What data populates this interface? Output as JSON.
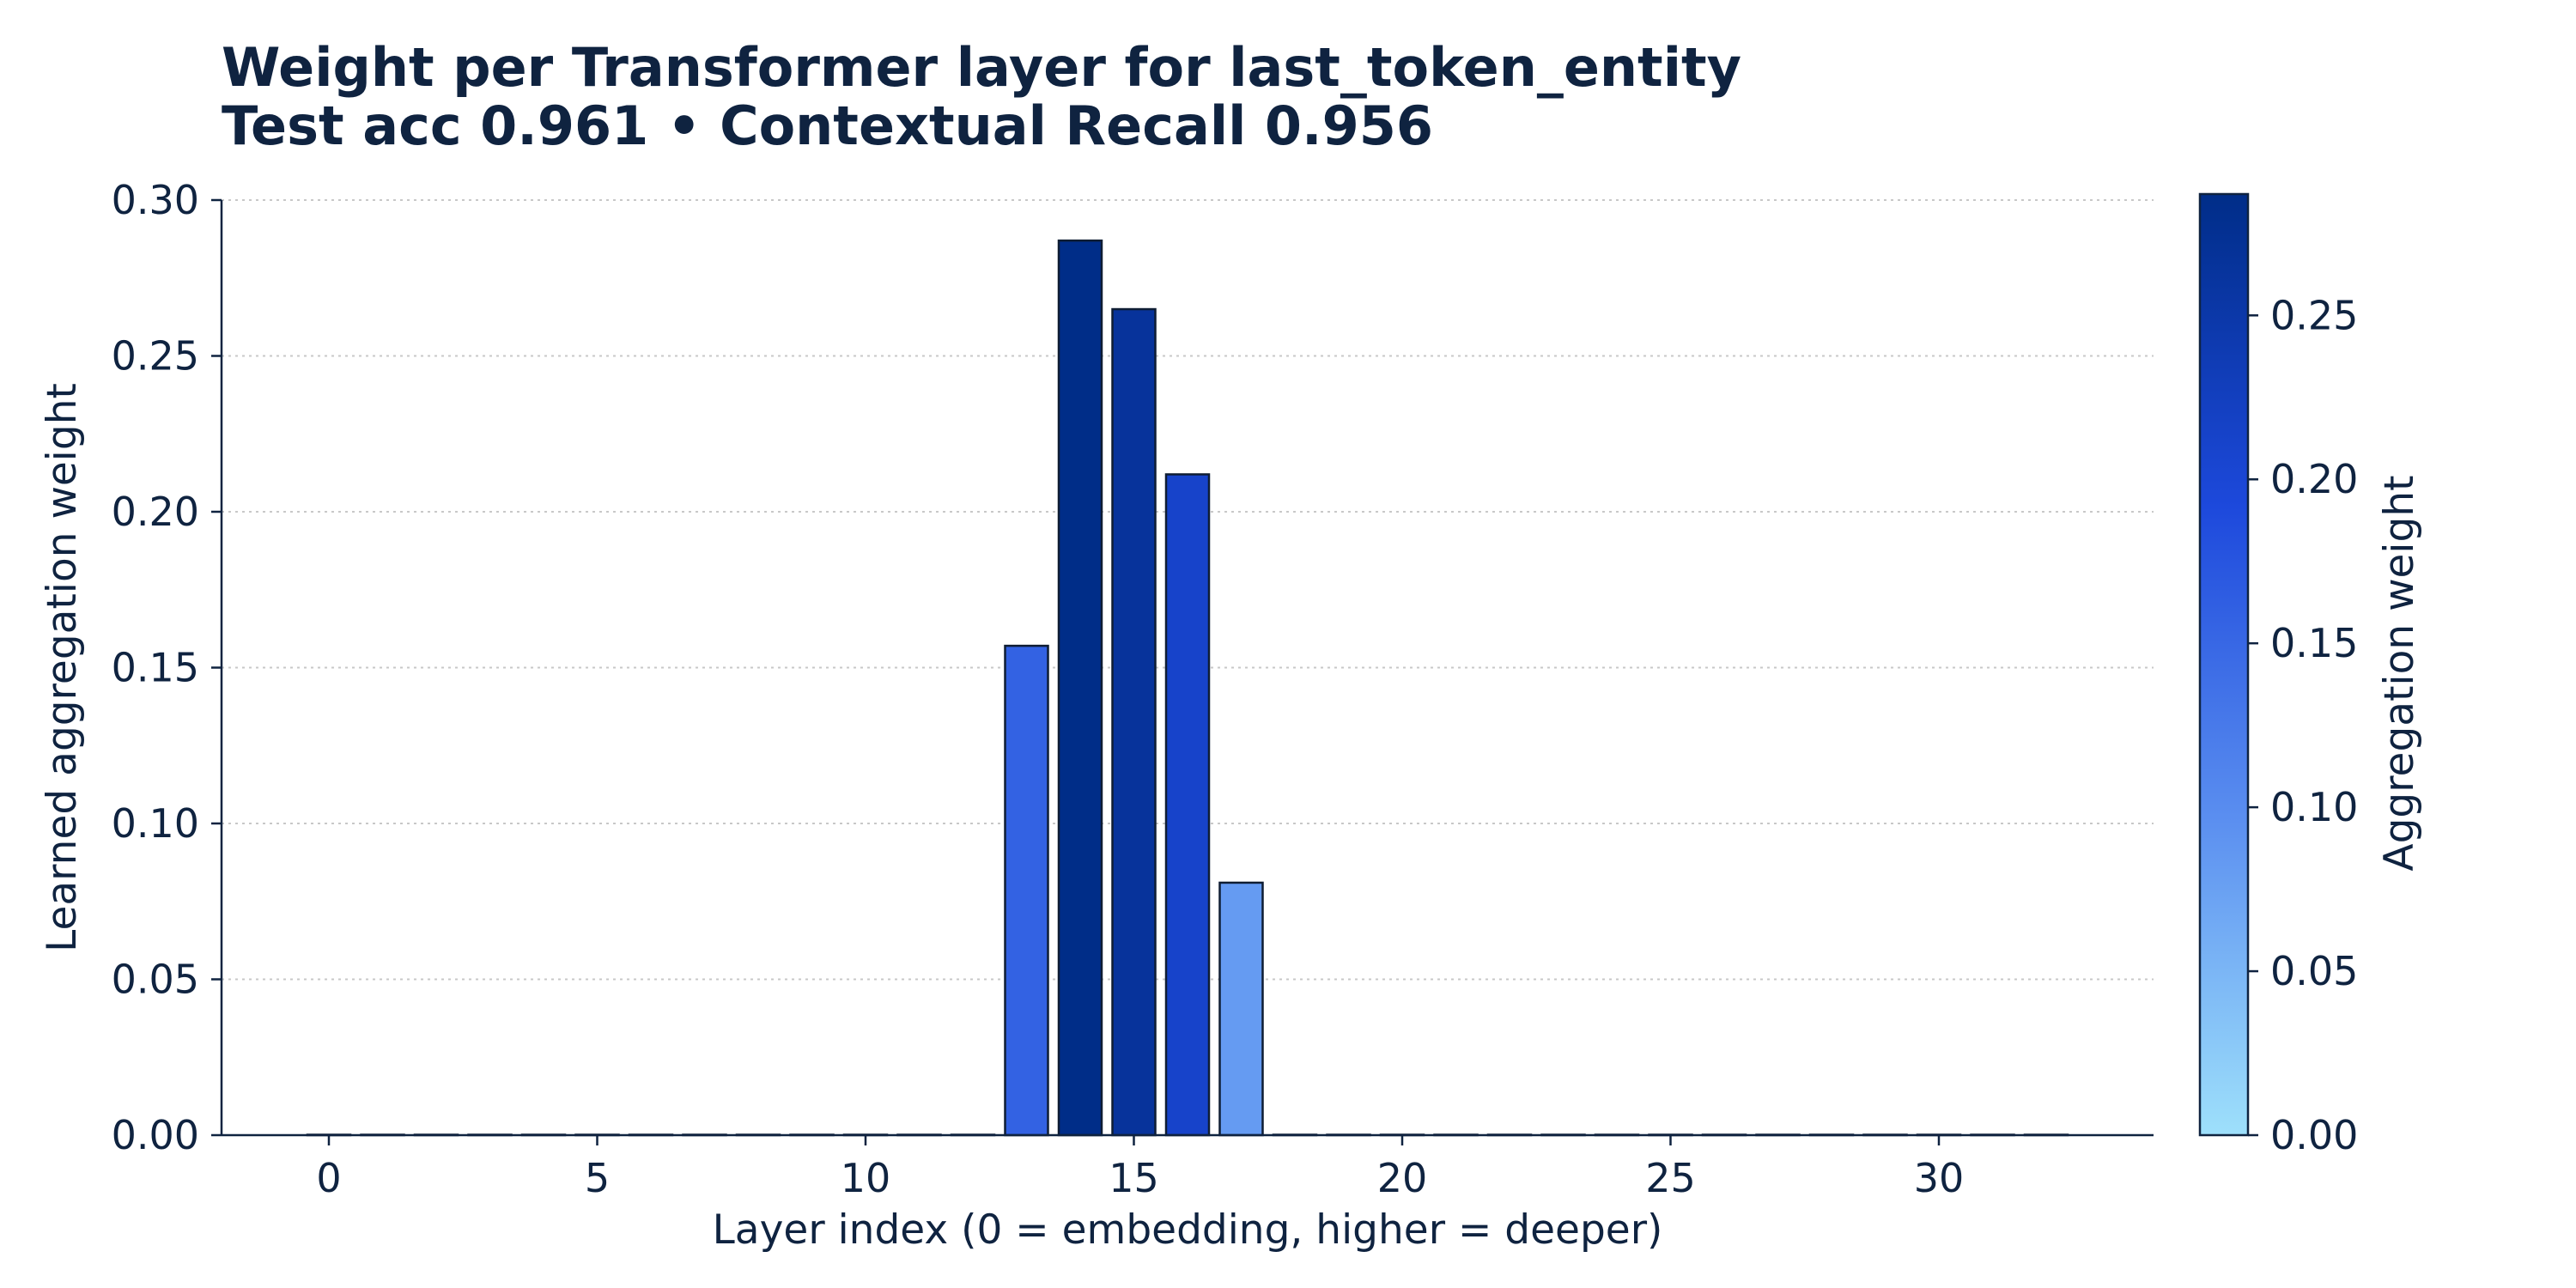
{
  "chart_data": {
    "type": "bar",
    "title": "Weight per Transformer layer for last_token_entity",
    "subtitle": "Test acc 0.961 • Contextual Recall 0.956",
    "xlabel": "Layer index (0 = embedding, higher = deeper)",
    "ylabel": "Learned aggregation weight",
    "x": [
      0,
      1,
      2,
      3,
      4,
      5,
      6,
      7,
      8,
      9,
      10,
      11,
      12,
      13,
      14,
      15,
      16,
      17,
      18,
      19,
      20,
      21,
      22,
      23,
      24,
      25,
      26,
      27,
      28,
      29,
      30,
      31,
      32
    ],
    "values": [
      0,
      0,
      0,
      0,
      0,
      0,
      0,
      0,
      0,
      0,
      0,
      0,
      0,
      0.157,
      0.287,
      0.265,
      0.212,
      0.081,
      0,
      0,
      0,
      0,
      0,
      0,
      0,
      0,
      0,
      0,
      0,
      0,
      0,
      0,
      0
    ],
    "xlim": [
      -2,
      34
    ],
    "ylim": [
      0,
      0.3
    ],
    "xticks": [
      0,
      5,
      10,
      15,
      20,
      25,
      30
    ],
    "xtick_labels": [
      "0",
      "5",
      "10",
      "15",
      "20",
      "25",
      "30"
    ],
    "yticks": [
      0,
      0.05,
      0.1,
      0.15,
      0.2,
      0.25,
      0.3
    ],
    "ytick_labels": [
      "0.00",
      "0.05",
      "0.10",
      "0.15",
      "0.20",
      "0.25",
      "0.30"
    ],
    "grid": "horizontal dotted",
    "colorbar": {
      "label": "Aggregation weight",
      "range": [
        0,
        0.287
      ],
      "ticks": [
        0,
        0.05,
        0.1,
        0.15,
        0.2,
        0.25
      ],
      "tick_labels": [
        "0.00",
        "0.05",
        "0.10",
        "0.15",
        "0.20",
        "0.25"
      ],
      "colors": [
        "#9ee0fb",
        "#5b8ff0",
        "#1d49dc",
        "#002d88"
      ]
    }
  }
}
